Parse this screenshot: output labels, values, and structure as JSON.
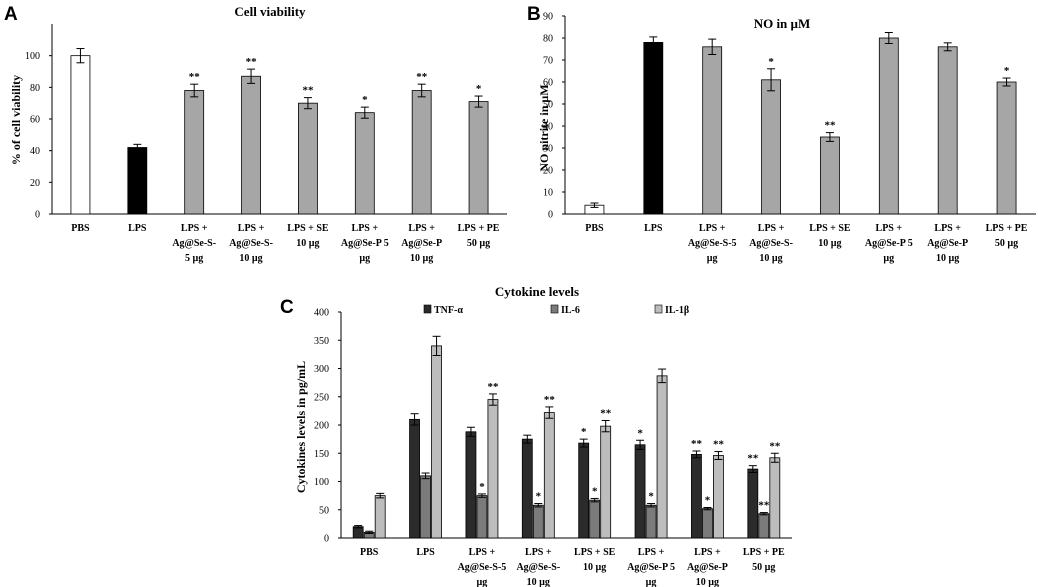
{
  "chart_data": [
    {
      "panel": "A",
      "type": "bar",
      "title": "Cell viability",
      "ylabel": "% of cell viability",
      "xlabel": "",
      "ylim": [
        0,
        120
      ],
      "yticks": [
        "0",
        "20",
        "40",
        "60",
        "80",
        "100"
      ],
      "categories": [
        [
          "PBS"
        ],
        [
          "LPS"
        ],
        [
          "LPS +",
          "Ag@Se-S-",
          "5 µg"
        ],
        [
          "LPS +",
          "Ag@Se-S-",
          "10 µg"
        ],
        [
          "LPS + SE",
          "10 µg"
        ],
        [
          "LPS +",
          "Ag@Se-P 5",
          "µg"
        ],
        [
          "LPS +",
          "Ag@Se-P",
          "10 µg"
        ],
        [
          "LPS + PE",
          "50 µg"
        ]
      ],
      "series": [
        {
          "name": "Cell viability",
          "values": [
            100,
            42,
            78,
            87,
            70,
            64,
            78,
            71
          ],
          "errors": [
            4.5,
            2,
            4,
            4.5,
            3.5,
            3.5,
            4,
            3.5
          ],
          "colors": [
            "#ffffff",
            "#000000",
            "#a6a6a6",
            "#a6a6a6",
            "#a6a6a6",
            "#a6a6a6",
            "#a6a6a6",
            "#a6a6a6"
          ],
          "significance": [
            "",
            "",
            "**",
            "**",
            "**",
            "*",
            "**",
            "*"
          ]
        }
      ]
    },
    {
      "panel": "B",
      "type": "bar",
      "title": "NO in µM",
      "ylabel": "NO nitrite in µM",
      "xlabel": "",
      "ylim": [
        0,
        90
      ],
      "yticks": [
        "0",
        "10",
        "20",
        "30",
        "40",
        "50",
        "60",
        "70",
        "80",
        "90"
      ],
      "categories": [
        [
          "PBS"
        ],
        [
          "LPS"
        ],
        [
          "LPS +",
          "Ag@Se-S-5",
          "µg"
        ],
        [
          "LPS +",
          "Ag@Se-S-",
          "10 µg"
        ],
        [
          "LPS + SE",
          "10 µg"
        ],
        [
          "LPS +",
          "Ag@Se-P 5",
          "µg"
        ],
        [
          "LPS +",
          "Ag@Se-P",
          "10 µg"
        ],
        [
          "LPS + PE",
          "50 µg"
        ]
      ],
      "series": [
        {
          "name": "NO nitrite",
          "values": [
            4,
            78,
            76,
            61,
            35,
            80,
            76,
            60
          ],
          "errors": [
            1,
            2.5,
            3.5,
            5,
            2,
            2.5,
            1.8,
            1.8
          ],
          "colors": [
            "#ffffff",
            "#000000",
            "#a6a6a6",
            "#a6a6a6",
            "#a6a6a6",
            "#a6a6a6",
            "#a6a6a6",
            "#a6a6a6"
          ],
          "significance": [
            "",
            "",
            "",
            "*",
            "**",
            "",
            "",
            "*"
          ]
        }
      ]
    },
    {
      "panel": "C",
      "type": "bar",
      "title": "Cytokine levels",
      "ylabel": "Cytokines levels in pg/mL",
      "xlabel": "",
      "ylim": [
        0,
        400
      ],
      "yticks": [
        "0",
        "50",
        "100",
        "150",
        "200",
        "250",
        "300",
        "350",
        "400"
      ],
      "legend_position": "top",
      "categories": [
        [
          "PBS"
        ],
        [
          "LPS"
        ],
        [
          "LPS +",
          "Ag@Se-S-5",
          "µg"
        ],
        [
          "LPS +",
          "Ag@Se-S-",
          "10 µg"
        ],
        [
          "LPS + SE",
          "10 µg"
        ],
        [
          "LPS +",
          "Ag@Se-P 5",
          "µg"
        ],
        [
          "LPS +",
          "Ag@Se-P",
          "10 µg"
        ],
        [
          "LPS + PE",
          "50 µg"
        ]
      ],
      "series": [
        {
          "name": "TNF-α",
          "color": "#2b2b2b",
          "values": [
            20,
            210,
            188,
            175,
            168,
            165,
            148,
            122
          ],
          "errors": [
            2,
            10,
            8,
            7,
            7,
            8,
            6,
            6
          ],
          "significance": [
            "",
            "",
            "",
            "",
            "*",
            "*",
            "**",
            "**"
          ]
        },
        {
          "name": "IL-6",
          "color": "#7b7b7b",
          "values": [
            10,
            110,
            75,
            58,
            67,
            58,
            52,
            43
          ],
          "errors": [
            2,
            5,
            3,
            3,
            3,
            3,
            2,
            2
          ],
          "significance": [
            "",
            "",
            "*",
            "*",
            "*",
            "*",
            "*",
            "**"
          ]
        },
        {
          "name": "IL-1β",
          "color": "#bdbdbd",
          "values": [
            75,
            340,
            245,
            222,
            198,
            287,
            146,
            142
          ],
          "errors": [
            4,
            17,
            10,
            10,
            10,
            12,
            7,
            8
          ],
          "significance": [
            "",
            "",
            "**",
            "**",
            "**",
            "",
            "**",
            "**"
          ]
        }
      ]
    }
  ]
}
